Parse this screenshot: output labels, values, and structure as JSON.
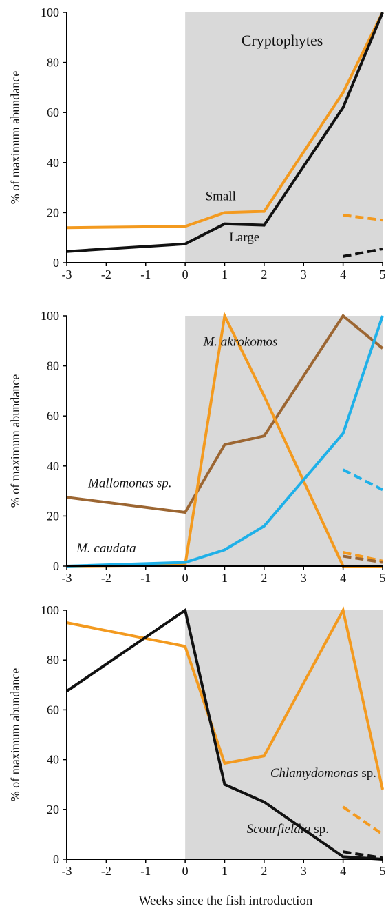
{
  "figure": {
    "xlabel": "Weeks since the fish introduction"
  },
  "colors": {
    "orange": "#f39a1f",
    "black": "#111111",
    "brown": "#9c6632",
    "blue": "#1fb0e8",
    "shade": "#d9d9d9"
  },
  "chart_data": [
    {
      "type": "line",
      "title": "Cryptophytes",
      "xlabel": "",
      "ylabel": "% of maximum abundance",
      "xlim": [
        -3,
        5
      ],
      "ylim": [
        0,
        100
      ],
      "xticks": [
        "-3",
        "-2",
        "-1",
        "0",
        "1",
        "2",
        "3",
        "4",
        "5"
      ],
      "yticks": [
        "0",
        "20",
        "40",
        "60",
        "80",
        "100"
      ],
      "shaded_x_range": [
        0,
        5
      ],
      "grid": false,
      "series": [
        {
          "name": "Small",
          "color": "orange",
          "style": "solid",
          "x": [
            -3,
            0,
            1,
            2,
            4,
            5
          ],
          "y": [
            14,
            14.5,
            20,
            20.5,
            68,
            100
          ]
        },
        {
          "name": "Large",
          "color": "black",
          "style": "solid",
          "x": [
            -3,
            0,
            1,
            2,
            4,
            5
          ],
          "y": [
            4.5,
            7.5,
            15.5,
            15,
            62,
            100
          ]
        },
        {
          "color": "orange",
          "style": "dashed",
          "x": [
            4,
            5
          ],
          "y": [
            19,
            17
          ]
        },
        {
          "color": "black",
          "style": "dashed",
          "x": [
            4,
            5
          ],
          "y": [
            2.5,
            5.5
          ]
        }
      ],
      "annotations": [
        {
          "text": "Small",
          "x": 0.9,
          "y": 25,
          "italic": false
        },
        {
          "text": "Large",
          "x": 1.5,
          "y": 8.5,
          "italic": false
        }
      ]
    },
    {
      "type": "line",
      "title": "",
      "xlabel": "",
      "ylabel": "% of maximum abundance",
      "xlim": [
        -3,
        5
      ],
      "ylim": [
        0,
        100
      ],
      "xticks": [
        "-3",
        "-2",
        "-1",
        "0",
        "1",
        "2",
        "3",
        "4",
        "5"
      ],
      "yticks": [
        "0",
        "20",
        "40",
        "60",
        "80",
        "100"
      ],
      "shaded_x_range": [
        0,
        5
      ],
      "grid": false,
      "series": [
        {
          "name": "Mallomonas sp.",
          "color": "brown",
          "style": "solid",
          "x": [
            -3,
            0,
            1,
            2,
            4,
            5
          ],
          "y": [
            27.5,
            21.5,
            48.5,
            52,
            100,
            87
          ]
        },
        {
          "name": "M. akrokomos",
          "color": "orange",
          "style": "solid",
          "x": [
            -3,
            0,
            1,
            2,
            4,
            5
          ],
          "y": [
            0,
            0.5,
            100,
            68,
            0,
            0
          ]
        },
        {
          "name": "M. caudata",
          "color": "blue",
          "style": "solid",
          "x": [
            -3,
            0,
            1,
            2,
            4,
            5
          ],
          "y": [
            0,
            1.5,
            6.5,
            16,
            53,
            100
          ]
        },
        {
          "color": "blue",
          "style": "dashed",
          "x": [
            4,
            5
          ],
          "y": [
            38.5,
            30.5
          ]
        },
        {
          "color": "orange",
          "style": "dashed",
          "x": [
            4,
            5
          ],
          "y": [
            5.5,
            2
          ]
        },
        {
          "color": "brown",
          "style": "dashed",
          "x": [
            4,
            5
          ],
          "y": [
            4,
            1.5
          ]
        }
      ],
      "annotations": [
        {
          "text": "M. akrokomos",
          "x": 1.4,
          "y": 88,
          "italic": true
        },
        {
          "text": "Mallomonas sp.",
          "x": -1.4,
          "y": 31.5,
          "italic": true
        },
        {
          "text": "M. caudata",
          "x": -2.0,
          "y": 5.5,
          "italic": true
        }
      ]
    },
    {
      "type": "line",
      "title": "",
      "xlabel": "Weeks since the fish introduction",
      "ylabel": "% of maximum abundance",
      "xlim": [
        -3,
        5
      ],
      "ylim": [
        0,
        100
      ],
      "xticks": [
        "-3",
        "-2",
        "-1",
        "0",
        "1",
        "2",
        "3",
        "4",
        "5"
      ],
      "yticks": [
        "0",
        "20",
        "40",
        "60",
        "80",
        "100"
      ],
      "shaded_x_range": [
        0,
        5
      ],
      "grid": false,
      "series": [
        {
          "name": "Chlamydomonas sp.",
          "color": "orange",
          "style": "solid",
          "x": [
            -3,
            0,
            1,
            2,
            4,
            5
          ],
          "y": [
            95,
            85.5,
            38.5,
            41.5,
            100,
            28
          ]
        },
        {
          "name": "Scourfieldia sp.",
          "color": "black",
          "style": "solid",
          "x": [
            -3,
            0,
            1,
            2,
            4,
            5
          ],
          "y": [
            67.5,
            100,
            30,
            23,
            1,
            0
          ]
        },
        {
          "color": "orange",
          "style": "dashed",
          "x": [
            4,
            5
          ],
          "y": [
            21,
            10
          ]
        },
        {
          "color": "black",
          "style": "dashed",
          "x": [
            4,
            5
          ],
          "y": [
            3,
            0.5
          ]
        }
      ],
      "annotations": [
        {
          "text": "Chlamydomonas sp.",
          "x": 3.5,
          "y": 33,
          "italic": true,
          "italic_part": "Chlamydomonas"
        },
        {
          "text": "Scourfieldia sp.",
          "x": 2.6,
          "y": 10.5,
          "italic": true,
          "italic_part": "Scourfieldia"
        }
      ]
    }
  ]
}
